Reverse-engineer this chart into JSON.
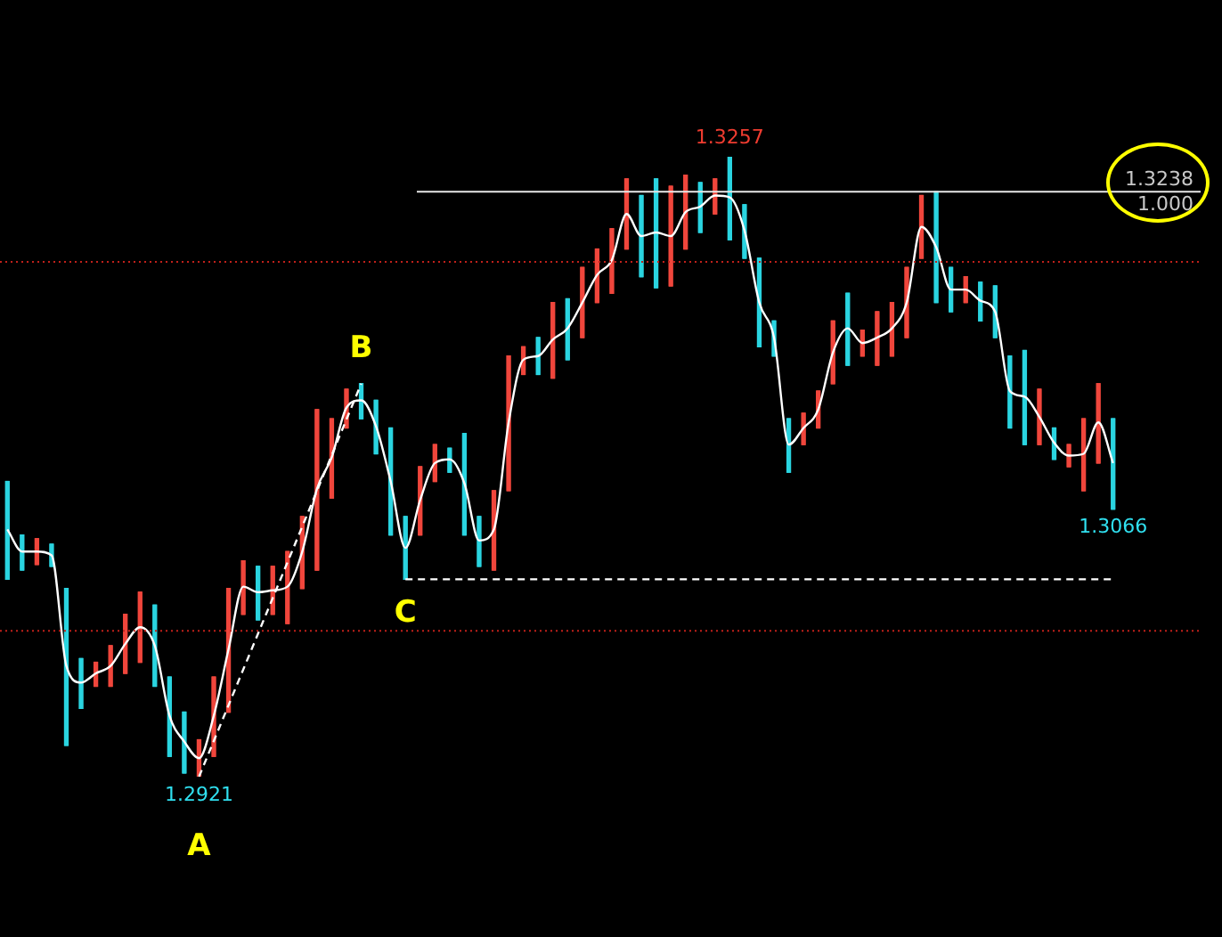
{
  "chart_data": {
    "type": "candlestick",
    "categories": [
      null,
      null,
      null,
      null,
      null,
      null,
      null,
      null,
      null,
      null,
      null,
      null,
      null,
      null,
      null,
      null,
      null,
      null,
      null,
      null,
      null,
      null,
      null,
      null,
      null,
      null,
      null,
      null,
      null,
      null,
      null,
      null,
      null,
      null,
      null,
      null,
      null,
      null,
      null,
      null,
      null,
      null,
      null,
      null,
      null,
      null,
      null,
      null,
      null,
      null,
      null,
      null,
      null,
      null,
      null,
      null,
      null,
      null,
      null,
      null,
      null,
      null,
      null,
      null,
      null,
      null,
      null,
      null,
      null,
      null,
      null,
      null,
      null,
      null,
      null,
      null
    ],
    "series": [
      {
        "ohlc": [
          [
            1.3081,
            1.3081,
            1.3028,
            1.3028
          ],
          [
            1.3052,
            1.3052,
            1.3033,
            1.3033
          ],
          [
            1.3036,
            1.305,
            1.3036,
            1.305
          ],
          [
            1.3047,
            1.3047,
            1.3035,
            1.3035
          ],
          [
            1.3023,
            1.3023,
            1.2938,
            1.2938
          ],
          [
            1.2985,
            1.2985,
            1.2958,
            1.2958
          ],
          [
            1.297,
            1.2983,
            1.297,
            1.2983
          ],
          [
            1.297,
            1.2992,
            1.297,
            1.2992
          ],
          [
            1.2977,
            1.3009,
            1.2977,
            1.3009
          ],
          [
            1.2983,
            1.3021,
            1.2983,
            1.3021
          ],
          [
            1.3014,
            1.3014,
            1.297,
            1.297
          ],
          [
            1.2975,
            1.2975,
            1.2932,
            1.2932
          ],
          [
            1.2956,
            1.2956,
            1.2923,
            1.2923
          ],
          [
            1.2921,
            1.2941,
            1.2921,
            1.2941
          ],
          [
            1.2932,
            1.2975,
            1.2932,
            1.2975
          ],
          [
            1.2956,
            1.3023,
            1.2956,
            1.3023
          ],
          [
            1.3009,
            1.3038,
            1.3009,
            1.3038
          ],
          [
            1.3035,
            1.3035,
            1.3006,
            1.3006
          ],
          [
            1.3009,
            1.3035,
            1.3009,
            1.3035
          ],
          [
            1.3004,
            1.3043,
            1.3004,
            1.3043
          ],
          [
            1.3023,
            1.3062,
            1.3023,
            1.3062
          ],
          [
            1.3033,
            1.312,
            1.3033,
            1.312
          ],
          [
            1.3072,
            1.3115,
            1.3072,
            1.3115
          ],
          [
            1.311,
            1.3131,
            1.311,
            1.3131
          ],
          [
            1.3134,
            1.3134,
            1.3115,
            1.3115
          ],
          [
            1.3125,
            1.3125,
            1.3096,
            1.3096
          ],
          [
            1.311,
            1.311,
            1.3052,
            1.3052
          ],
          [
            1.3062,
            1.3062,
            1.3028,
            1.3028
          ],
          [
            1.3052,
            1.3089,
            1.3052,
            1.3089
          ],
          [
            1.3081,
            1.3101,
            1.3081,
            1.3101
          ],
          [
            1.3099,
            1.3099,
            1.3086,
            1.3086
          ],
          [
            1.3107,
            1.3107,
            1.3052,
            1.3052
          ],
          [
            1.3062,
            1.3062,
            1.3035,
            1.3035
          ],
          [
            1.3033,
            1.3076,
            1.3033,
            1.3076
          ],
          [
            1.3076,
            1.3149,
            1.3076,
            1.3149
          ],
          [
            1.3139,
            1.3154,
            1.3139,
            1.3154
          ],
          [
            1.3159,
            1.3159,
            1.3139,
            1.3139
          ],
          [
            1.3137,
            1.3178,
            1.3137,
            1.3178
          ],
          [
            1.318,
            1.318,
            1.3147,
            1.3147
          ],
          [
            1.3159,
            1.3197,
            1.3159,
            1.3197
          ],
          [
            1.3178,
            1.3207,
            1.3178,
            1.3207
          ],
          [
            1.3183,
            1.3218,
            1.3183,
            1.3218
          ],
          [
            1.3207,
            1.3245,
            1.3207,
            1.3245
          ],
          [
            1.3236,
            1.3236,
            1.3192,
            1.3192
          ],
          [
            1.3245,
            1.3245,
            1.3186,
            1.3186
          ],
          [
            1.3187,
            1.3241,
            1.3187,
            1.3241
          ],
          [
            1.3207,
            1.3247,
            1.3207,
            1.3247
          ],
          [
            1.3243,
            1.3243,
            1.3216,
            1.3216
          ],
          [
            1.3226,
            1.3245,
            1.3226,
            1.3245
          ],
          [
            1.3257,
            1.3257,
            1.3212,
            1.3212
          ],
          [
            1.3231,
            1.3231,
            1.3202,
            1.3202
          ],
          [
            1.3202,
            1.3202,
            1.3154,
            1.3154
          ],
          [
            1.3168,
            1.3168,
            1.3149,
            1.3149
          ],
          [
            1.3115,
            1.3115,
            1.3086,
            1.3086
          ],
          [
            1.3101,
            1.3118,
            1.3101,
            1.3118
          ],
          [
            1.311,
            1.313,
            1.311,
            1.313
          ],
          [
            1.3134,
            1.3168,
            1.3134,
            1.3168
          ],
          [
            1.3183,
            1.3183,
            1.3144,
            1.3144
          ],
          [
            1.3149,
            1.3163,
            1.3149,
            1.3163
          ],
          [
            1.3144,
            1.3173,
            1.3144,
            1.3173
          ],
          [
            1.3149,
            1.3178,
            1.3149,
            1.3178
          ],
          [
            1.3159,
            1.3197,
            1.3159,
            1.3197
          ],
          [
            1.3202,
            1.3236,
            1.3202,
            1.3236
          ],
          [
            1.3238,
            1.3238,
            1.3178,
            1.3178
          ],
          [
            1.3197,
            1.3197,
            1.3173,
            1.3173
          ],
          [
            1.3178,
            1.3192,
            1.3178,
            1.3192
          ],
          [
            1.3189,
            1.3189,
            1.3168,
            1.3168
          ],
          [
            1.3187,
            1.3187,
            1.3159,
            1.3159
          ],
          [
            1.3149,
            1.3149,
            1.311,
            1.311
          ],
          [
            1.3152,
            1.3152,
            1.3101,
            1.3101
          ],
          [
            1.3101,
            1.3131,
            1.3101,
            1.3131
          ],
          [
            1.311,
            1.311,
            1.3093,
            1.3093
          ],
          [
            1.3089,
            1.3101,
            1.3089,
            1.3101
          ],
          [
            1.3076,
            1.3115,
            1.3076,
            1.3115
          ],
          [
            1.3091,
            1.3134,
            1.3091,
            1.3134
          ],
          [
            1.3115,
            1.3115,
            1.3066,
            1.3066
          ]
        ],
        "colors": [
          "#2ad4e0",
          "#2ad4e0",
          "#f0463c",
          "#2ad4e0",
          "#2ad4e0",
          "#2ad4e0",
          "#f0463c",
          "#f0463c",
          "#f0463c",
          "#f0463c",
          "#2ad4e0",
          "#2ad4e0",
          "#2ad4e0",
          "#f0463c",
          "#f0463c",
          "#f0463c",
          "#f0463c",
          "#2ad4e0",
          "#f0463c",
          "#f0463c",
          "#f0463c",
          "#f0463c",
          "#f0463c",
          "#f0463c",
          "#2ad4e0",
          "#2ad4e0",
          "#2ad4e0",
          "#2ad4e0",
          "#f0463c",
          "#f0463c",
          "#2ad4e0",
          "#2ad4e0",
          "#2ad4e0",
          "#f0463c",
          "#f0463c",
          "#f0463c",
          "#2ad4e0",
          "#f0463c",
          "#2ad4e0",
          "#f0463c",
          "#f0463c",
          "#f0463c",
          "#f0463c",
          "#2ad4e0",
          "#2ad4e0",
          "#f0463c",
          "#f0463c",
          "#2ad4e0",
          "#f0463c",
          "#2ad4e0",
          "#2ad4e0",
          "#2ad4e0",
          "#2ad4e0",
          "#2ad4e0",
          "#f0463c",
          "#f0463c",
          "#f0463c",
          "#2ad4e0",
          "#f0463c",
          "#f0463c",
          "#f0463c",
          "#f0463c",
          "#f0463c",
          "#2ad4e0",
          "#2ad4e0",
          "#f0463c",
          "#2ad4e0",
          "#2ad4e0",
          "#2ad4e0",
          "#2ad4e0",
          "#f0463c",
          "#2ad4e0",
          "#f0463c",
          "#f0463c",
          "#f0463c",
          "#2ad4e0"
        ]
      },
      {
        "type": "line",
        "color": "#ffffff",
        "values": [
          1.3055,
          1.3043,
          1.3043,
          1.3041,
          1.2981,
          1.2972,
          1.2977,
          1.2981,
          1.2993,
          1.3002,
          1.2992,
          1.2954,
          1.294,
          1.2931,
          1.2954,
          1.299,
          1.3024,
          1.3021,
          1.3022,
          1.3024,
          1.3043,
          1.3077,
          1.3094,
          1.3121,
          1.3125,
          1.3111,
          1.3081,
          1.3045,
          1.3071,
          1.3091,
          1.3093,
          1.308,
          1.3049,
          1.3055,
          1.3113,
          1.3147,
          1.3149,
          1.3158,
          1.3164,
          1.3178,
          1.3193,
          1.3201,
          1.3226,
          1.3214,
          1.3216,
          1.3214,
          1.3227,
          1.323,
          1.3236,
          1.3235,
          1.3217,
          1.3178,
          1.3159,
          1.3101,
          1.311,
          1.312,
          1.3151,
          1.3164,
          1.3156,
          1.3159,
          1.3164,
          1.3178,
          1.3219,
          1.3208,
          1.3185,
          1.3185,
          1.3179,
          1.3173,
          1.313,
          1.3127,
          1.3116,
          1.3102,
          1.3095,
          1.3096,
          1.3113,
          1.3091
        ]
      },
      {
        "type": "line",
        "color": "#ffffff",
        "line_style": "dashed",
        "values": [
          null,
          null,
          null,
          null,
          null,
          null,
          null,
          null,
          null,
          null,
          null,
          null,
          null,
          1.2921,
          null,
          null,
          null,
          null,
          null,
          null,
          null,
          null,
          null,
          null,
          1.3134,
          null,
          null,
          null,
          null,
          null,
          null,
          null,
          null,
          null,
          null,
          null,
          null,
          null,
          null,
          null,
          null,
          null,
          null,
          null,
          null,
          null,
          null,
          null,
          null,
          null,
          null,
          null,
          null,
          null,
          null,
          null,
          null,
          null,
          null,
          null,
          null,
          null,
          null,
          null,
          null,
          null,
          null,
          null,
          null,
          null,
          null,
          null,
          null,
          null,
          null,
          null
        ]
      },
      {
        "type": "line",
        "color": "#ffffff",
        "line_style": "dashed",
        "values": [
          null,
          null,
          null,
          null,
          null,
          null,
          null,
          null,
          null,
          null,
          null,
          null,
          null,
          null,
          null,
          null,
          null,
          null,
          null,
          null,
          null,
          null,
          null,
          null,
          null,
          null,
          null,
          1.3028,
          null,
          null,
          null,
          null,
          null,
          null,
          null,
          null,
          null,
          null,
          null,
          null,
          null,
          null,
          null,
          null,
          null,
          null,
          null,
          null,
          null,
          null,
          null,
          null,
          null,
          null,
          null,
          null,
          null,
          null,
          null,
          null,
          null,
          null,
          null,
          null,
          null,
          null,
          null,
          null,
          null,
          null,
          null,
          null,
          null,
          null,
          null,
          1.3028
        ]
      }
    ],
    "ref_lines": [
      {
        "axis": "y",
        "value": 1.3238,
        "label": "1.3238",
        "color": "#e8e8e8",
        "line_style": "solid"
      },
      {
        "axis": "y",
        "value": 1.32,
        "color": "#c0201a",
        "line_style": "dotted"
      },
      {
        "axis": "y",
        "value": 1.3,
        "color": "#c0201a",
        "line_style": "dotted"
      }
    ],
    "annotations": [
      "1.000",
      {
        "text": "1.3257",
        "y": 1.3257
      },
      {
        "text": "1.2921",
        "y": 1.2921
      },
      {
        "text": "A",
        "y": 1.2921
      },
      {
        "text": "B",
        "y": 1.3134
      },
      {
        "text": "C",
        "y": 1.3028
      },
      {
        "text": "1.3066",
        "y": 1.3066
      }
    ],
    "tick_labels": false,
    "legend": false
  }
}
